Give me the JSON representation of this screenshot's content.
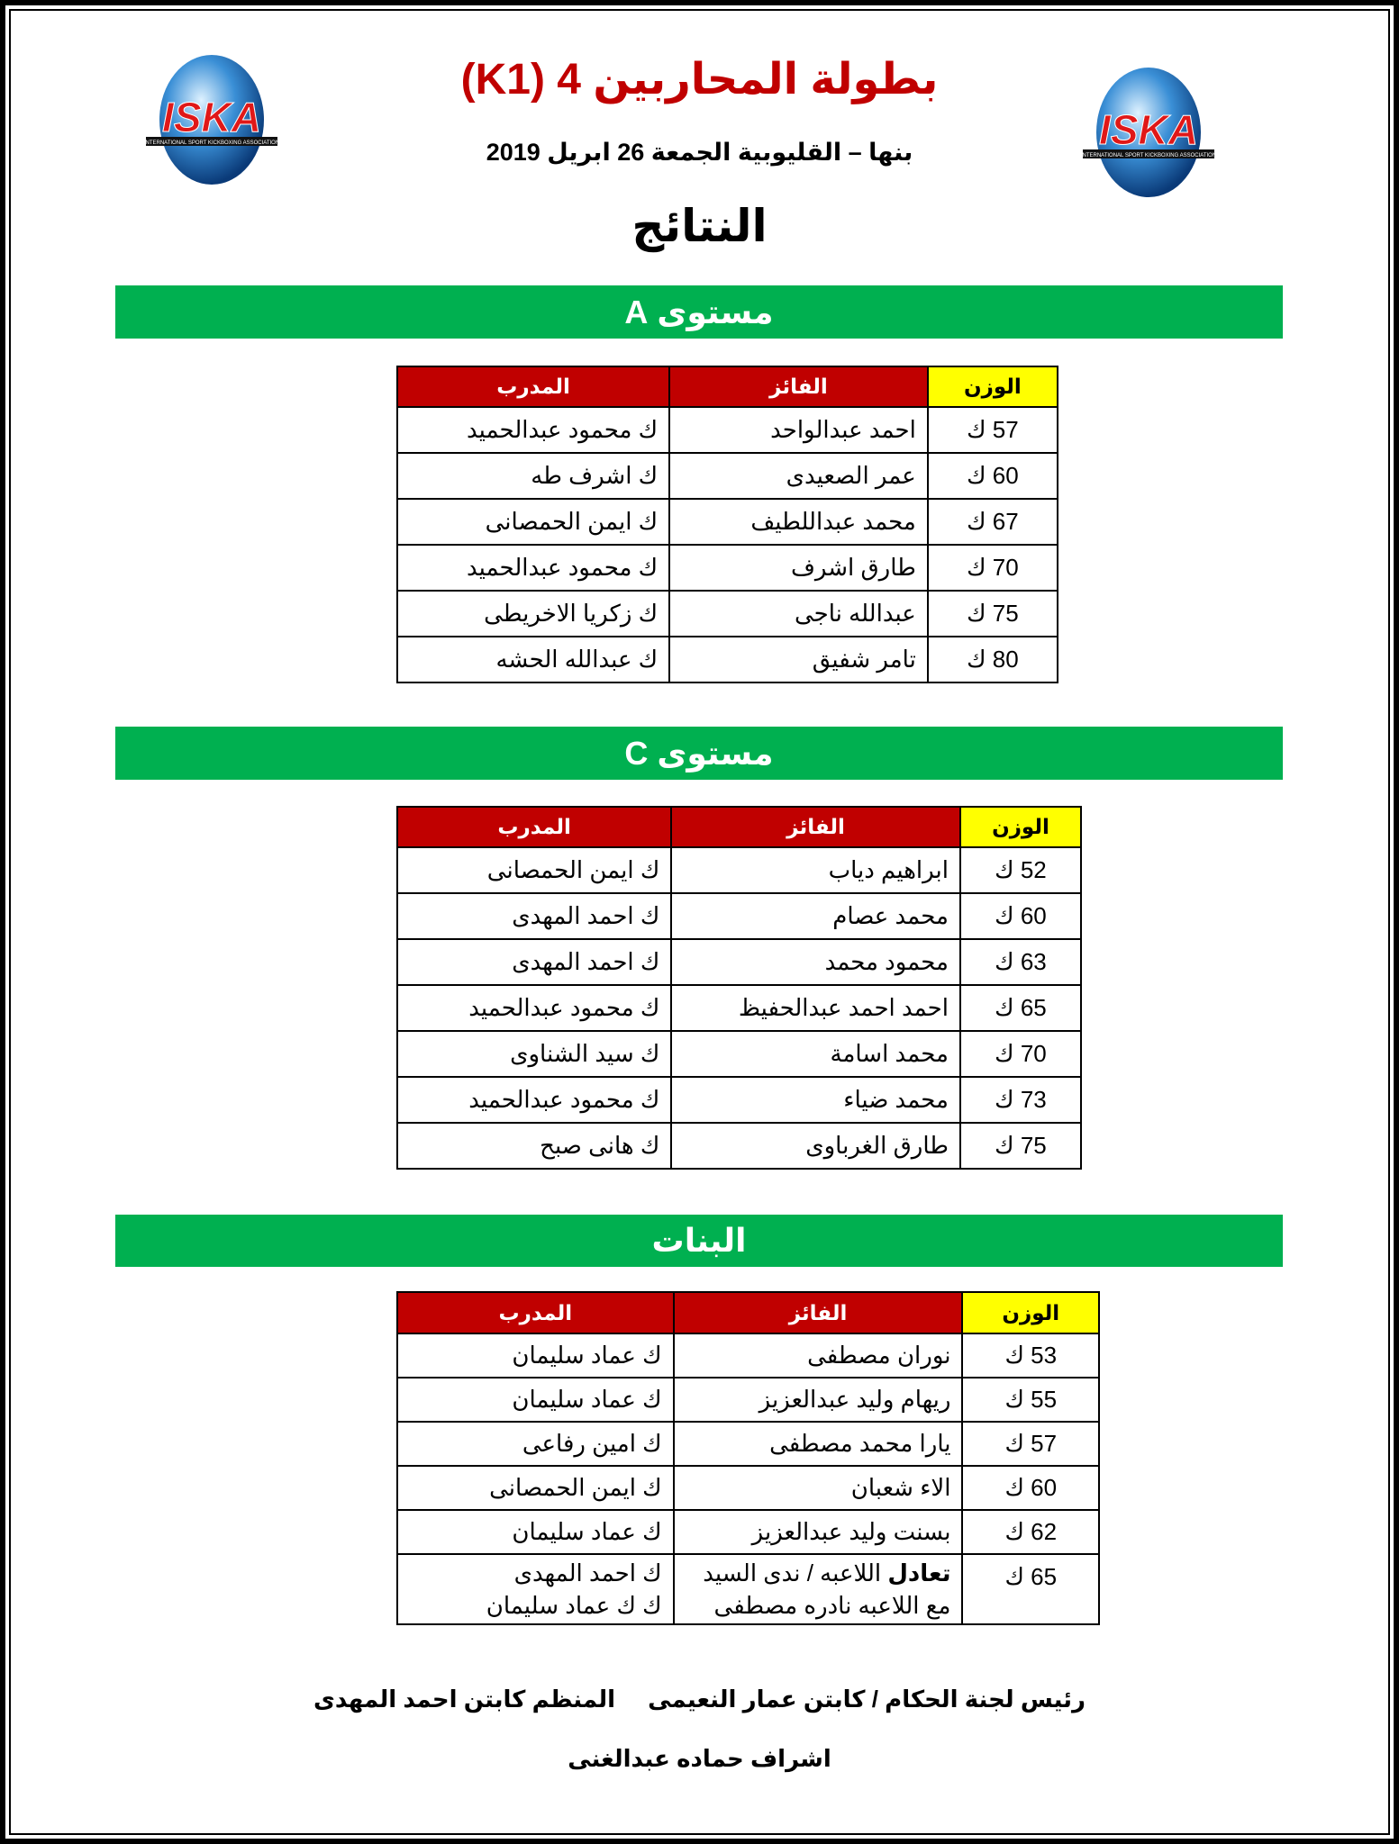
{
  "header": {
    "title": "بطولة المحاربين 4 (K1)",
    "subtitle": "بنها – القليوبية الجمعة 26 ابريل 2019",
    "results_heading": "النتائج",
    "logo_text": "ISKA",
    "logo_subtext": "INTERNATIONAL SPORT KICKBOXING ASSOCIATION"
  },
  "columns": {
    "weight": "الوزن",
    "winner": "الفائز",
    "coach": "المدرب"
  },
  "sections": [
    {
      "title": "مستوى A",
      "rows": [
        {
          "weight": "57 ك",
          "winner": "احمد عبدالواحد",
          "coach": "ك محمود عبدالحميد"
        },
        {
          "weight": "60 ك",
          "winner": "عمر الصعيدى",
          "coach": "ك اشرف طه"
        },
        {
          "weight": "67 ك",
          "winner": "محمد عبداللطيف",
          "coach": "ك ايمن الحمصانى"
        },
        {
          "weight": "70 ك",
          "winner": "طارق اشرف",
          "coach": "ك محمود عبدالحميد"
        },
        {
          "weight": "75 ك",
          "winner": "عبدالله ناجى",
          "coach": "ك زكريا الاخريطى"
        },
        {
          "weight": "80 ك",
          "winner": "تامر شفيق",
          "coach": "ك عبدالله الحشه"
        }
      ]
    },
    {
      "title": "مستوى C",
      "rows": [
        {
          "weight": "52 ك",
          "winner": "ابراهيم دياب",
          "coach": "ك ايمن الحمصانى"
        },
        {
          "weight": "60 ك",
          "winner": "محمد عصام",
          "coach": "ك احمد المهدى"
        },
        {
          "weight": "63 ك",
          "winner": "محمود محمد",
          "coach": "ك احمد المهدى"
        },
        {
          "weight": "65 ك",
          "winner": "احمد احمد عبدالحفيظ",
          "coach": "ك محمود عبدالحميد"
        },
        {
          "weight": "70 ك",
          "winner": "محمد اسامة",
          "coach": "ك سيد الشناوى"
        },
        {
          "weight": "73 ك",
          "winner": "محمد ضياء",
          "coach": "ك محمود عبدالحميد"
        },
        {
          "weight": "75 ك",
          "winner": "طارق الغرباوى",
          "coach": "ك هانى صبح"
        }
      ]
    },
    {
      "title": "البنات",
      "rows": [
        {
          "weight": "53 ك",
          "winner": "نوران مصطفى",
          "coach": "ك عماد سليمان"
        },
        {
          "weight": "55 ك",
          "winner": "ريهام وليد عبدالعزيز",
          "coach": "ك عماد سليمان"
        },
        {
          "weight": "57 ك",
          "winner": "يارا محمد مصطفى",
          "coach": "ك امين رفاعى"
        },
        {
          "weight": "60 ك",
          "winner": "الاء شعبان",
          "coach": "ك ايمن الحمصانى"
        },
        {
          "weight": "62 ك",
          "winner": "بسنت وليد عبدالعزيز",
          "coach": "ك عماد سليمان"
        }
      ],
      "draw_row": {
        "weight": "65 ك",
        "winner_bold": "تعادل",
        "winner_line1": " اللاعبه / ندى السيد",
        "winner_line2": "مع اللاعبه نادره مصطفى",
        "coach_line1": "ك احمد المهدى",
        "coach_line2": "ك ك عماد سليمان"
      }
    }
  ],
  "footer": {
    "line1": "رئيس لجنة الحكام / كابتن عمار النعيمى     المنظم كابتن احمد المهدى",
    "line2": "اشراف حماده عبدالغنى"
  },
  "colors": {
    "title": "#c00000",
    "section_bar": "#00b050",
    "header_red": "#c00000",
    "header_yellow": "#ffff00"
  }
}
